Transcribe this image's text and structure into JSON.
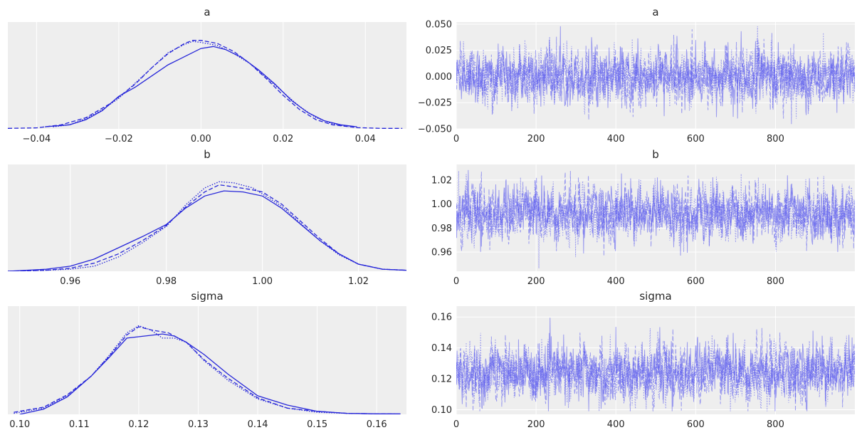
{
  "chart_data": [
    {
      "type": "line",
      "title": "a",
      "xlim": [
        -0.047,
        0.05
      ],
      "ylim": [
        0,
        1.05
      ],
      "x_ticks": [
        "−0.04",
        "−0.02",
        "0.00",
        "0.02",
        "0.04"
      ],
      "x_tick_values": [
        -0.04,
        -0.02,
        0.0,
        0.02,
        0.04
      ],
      "y_ticks": [],
      "grid": true,
      "series": [
        {
          "style": "solid",
          "x": [
            -0.038,
            -0.032,
            -0.028,
            -0.024,
            -0.02,
            -0.016,
            -0.012,
            -0.008,
            -0.004,
            0.0,
            0.003,
            0.006,
            0.01,
            0.014,
            0.018,
            0.022,
            0.026,
            0.03,
            0.034,
            0.038
          ],
          "y": [
            0.02,
            0.04,
            0.09,
            0.18,
            0.32,
            0.41,
            0.52,
            0.63,
            0.71,
            0.79,
            0.81,
            0.78,
            0.7,
            0.58,
            0.44,
            0.28,
            0.16,
            0.08,
            0.04,
            0.02
          ]
        },
        {
          "style": "dashed",
          "x": [
            -0.047,
            -0.04,
            -0.034,
            -0.028,
            -0.022,
            -0.016,
            -0.012,
            -0.008,
            -0.004,
            -0.002,
            0.0,
            0.004,
            0.008,
            0.012,
            0.016,
            0.02,
            0.024,
            0.028,
            0.032,
            0.038,
            0.044,
            0.049
          ],
          "y": [
            0.005,
            0.01,
            0.04,
            0.11,
            0.25,
            0.44,
            0.6,
            0.74,
            0.84,
            0.87,
            0.87,
            0.84,
            0.76,
            0.64,
            0.49,
            0.33,
            0.19,
            0.09,
            0.04,
            0.012,
            0.005,
            0.005
          ]
        },
        {
          "style": "dotted",
          "x": [
            -0.036,
            -0.032,
            -0.028,
            -0.024,
            -0.02,
            -0.016,
            -0.012,
            -0.008,
            -0.004,
            -0.002,
            0.0,
            0.004,
            0.008,
            0.012,
            0.016,
            0.02,
            0.024,
            0.028,
            0.032,
            0.036
          ],
          "y": [
            0.02,
            0.04,
            0.1,
            0.19,
            0.3,
            0.45,
            0.6,
            0.75,
            0.83,
            0.86,
            0.85,
            0.82,
            0.74,
            0.64,
            0.5,
            0.36,
            0.22,
            0.11,
            0.05,
            0.02
          ]
        }
      ]
    },
    {
      "type": "line",
      "title": "a",
      "xlim": [
        0,
        999
      ],
      "ylim": [
        -0.05,
        0.052
      ],
      "x_ticks": [
        "0",
        "200",
        "400",
        "600",
        "800"
      ],
      "x_tick_values": [
        0,
        200,
        400,
        600,
        800
      ],
      "y_ticks": [
        "−0.050",
        "−0.025",
        "0.000",
        "0.025",
        "0.050"
      ],
      "y_tick_values": [
        -0.05,
        -0.025,
        0.0,
        0.025,
        0.05
      ],
      "grid": true,
      "trace": {
        "draws": 1000,
        "chains": 3,
        "mean": 0.0,
        "sd": 0.012,
        "min": -0.047,
        "max": 0.048
      }
    },
    {
      "type": "line",
      "title": "b",
      "xlim": [
        0.947,
        1.03
      ],
      "ylim": [
        0,
        1.05
      ],
      "x_ticks": [
        "0.96",
        "0.98",
        "1.00",
        "1.02"
      ],
      "x_tick_values": [
        0.96,
        0.98,
        1.0,
        1.02
      ],
      "y_ticks": [],
      "grid": true,
      "series": [
        {
          "style": "solid",
          "x": [
            0.947,
            0.955,
            0.96,
            0.965,
            0.97,
            0.975,
            0.98,
            0.984,
            0.988,
            0.992,
            0.996,
            1.0,
            1.004,
            1.008,
            1.012,
            1.016,
            1.02,
            1.025,
            1.03
          ],
          "y": [
            0.0,
            0.02,
            0.05,
            0.12,
            0.23,
            0.34,
            0.46,
            0.62,
            0.74,
            0.79,
            0.78,
            0.74,
            0.62,
            0.46,
            0.3,
            0.17,
            0.07,
            0.02,
            0.01
          ]
        },
        {
          "style": "dashed",
          "x": [
            0.947,
            0.955,
            0.96,
            0.965,
            0.97,
            0.975,
            0.98,
            0.984,
            0.988,
            0.991,
            0.994,
            0.998,
            1.0,
            1.004,
            1.008,
            1.012,
            1.016,
            1.02,
            1.025,
            1.03
          ],
          "y": [
            0.0,
            0.01,
            0.03,
            0.08,
            0.17,
            0.3,
            0.45,
            0.63,
            0.78,
            0.85,
            0.83,
            0.8,
            0.78,
            0.66,
            0.49,
            0.32,
            0.17,
            0.07,
            0.02,
            0.01
          ]
        },
        {
          "style": "dotted",
          "x": [
            0.947,
            0.955,
            0.96,
            0.965,
            0.97,
            0.975,
            0.98,
            0.984,
            0.988,
            0.991,
            0.994,
            0.998,
            1.0,
            1.004,
            1.008,
            1.012,
            1.016,
            1.02,
            1.025,
            1.03
          ],
          "y": [
            0.0,
            0.01,
            0.02,
            0.05,
            0.14,
            0.28,
            0.44,
            0.65,
            0.82,
            0.88,
            0.87,
            0.82,
            0.76,
            0.64,
            0.47,
            0.3,
            0.16,
            0.07,
            0.02,
            0.01
          ]
        }
      ]
    },
    {
      "type": "line",
      "title": "b",
      "xlim": [
        0,
        999
      ],
      "ylim": [
        0.944,
        1.033
      ],
      "x_ticks": [
        "0",
        "200",
        "400",
        "600",
        "800"
      ],
      "x_tick_values": [
        0,
        200,
        400,
        600,
        800
      ],
      "y_ticks": [
        "0.96",
        "0.98",
        "1.00",
        "1.02"
      ],
      "y_tick_values": [
        0.96,
        0.98,
        1.0,
        1.02
      ],
      "grid": true,
      "trace": {
        "draws": 1000,
        "chains": 3,
        "mean": 0.992,
        "sd": 0.0105,
        "min": 0.946,
        "max": 1.031
      }
    },
    {
      "type": "line",
      "title": "sigma",
      "xlim": [
        0.098,
        0.165
      ],
      "ylim": [
        0,
        1.05
      ],
      "x_ticks": [
        "0.10",
        "0.11",
        "0.12",
        "0.13",
        "0.14",
        "0.15",
        "0.16"
      ],
      "x_tick_values": [
        0.1,
        0.11,
        0.12,
        0.13,
        0.14,
        0.15,
        0.16
      ],
      "y_ticks": [],
      "grid": true,
      "series": [
        {
          "style": "solid",
          "x": [
            0.1,
            0.104,
            0.108,
            0.112,
            0.115,
            0.118,
            0.121,
            0.124,
            0.126,
            0.128,
            0.131,
            0.135,
            0.14,
            0.145,
            0.15,
            0.155,
            0.16,
            0.164
          ],
          "y": [
            0.0,
            0.05,
            0.17,
            0.37,
            0.55,
            0.74,
            0.76,
            0.78,
            0.76,
            0.7,
            0.58,
            0.39,
            0.18,
            0.09,
            0.03,
            0.01,
            0.005,
            0.005
          ]
        },
        {
          "style": "dashed",
          "x": [
            0.099,
            0.104,
            0.108,
            0.112,
            0.115,
            0.118,
            0.12,
            0.122,
            0.125,
            0.128,
            0.131,
            0.135,
            0.14,
            0.145,
            0.15,
            0.155,
            0.16,
            0.163
          ],
          "y": [
            0.02,
            0.07,
            0.19,
            0.37,
            0.56,
            0.77,
            0.85,
            0.82,
            0.79,
            0.7,
            0.53,
            0.35,
            0.16,
            0.06,
            0.03,
            0.01,
            0.005,
            0.005
          ]
        },
        {
          "style": "dotted",
          "x": [
            0.099,
            0.104,
            0.108,
            0.112,
            0.115,
            0.118,
            0.12,
            0.122,
            0.124,
            0.126,
            0.128,
            0.131,
            0.135,
            0.14,
            0.145,
            0.15,
            0.155,
            0.16
          ],
          "y": [
            0.01,
            0.06,
            0.18,
            0.37,
            0.57,
            0.79,
            0.86,
            0.82,
            0.74,
            0.74,
            0.7,
            0.52,
            0.33,
            0.15,
            0.06,
            0.02,
            0.01,
            0.005
          ]
        }
      ]
    },
    {
      "type": "line",
      "title": "sigma",
      "xlim": [
        0,
        999
      ],
      "ylim": [
        0.097,
        0.167
      ],
      "x_ticks": [
        "0",
        "200",
        "400",
        "600",
        "800"
      ],
      "x_tick_values": [
        0,
        200,
        400,
        600,
        800
      ],
      "y_ticks": [
        "0.10",
        "0.12",
        "0.14",
        "0.16"
      ],
      "y_tick_values": [
        0.1,
        0.12,
        0.14,
        0.16
      ],
      "grid": true,
      "trace": {
        "draws": 1000,
        "chains": 3,
        "mean": 0.124,
        "sd": 0.0085,
        "min": 0.099,
        "max": 0.164
      }
    }
  ],
  "colors": {
    "kde": "#2626d9",
    "trace": "#5555ee",
    "axes_bg": "#eeeeee",
    "grid": "#ffffff",
    "text": "#262626"
  }
}
